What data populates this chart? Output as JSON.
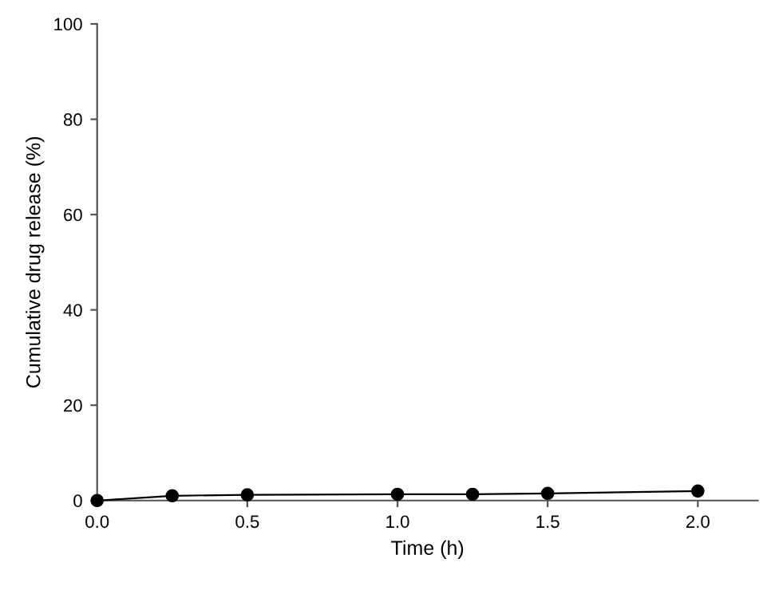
{
  "chart_data": {
    "type": "line",
    "xlabel": "Time (h)",
    "ylabel": "Cumulative drug release (%)",
    "x": [
      0,
      0.25,
      0.5,
      1.0,
      1.25,
      1.5,
      2.0
    ],
    "series": [
      {
        "color": "#000000",
        "values": [
          0,
          1.0,
          1.2,
          1.3,
          1.3,
          1.5,
          2.0
        ]
      }
    ],
    "xlim": [
      0,
      2.2
    ],
    "xticks": [
      {
        "value": 0,
        "label": "0.0"
      },
      0.5,
      {
        "value": 1,
        "label": "1.0"
      },
      1.5,
      {
        "value": 2,
        "label": "2.0"
      }
    ],
    "ylim": [
      0,
      100
    ],
    "yticks": [
      0,
      20,
      40,
      60,
      80,
      100
    ],
    "marker": "circle",
    "line_style": "solid",
    "grid": false,
    "legend": false
  }
}
